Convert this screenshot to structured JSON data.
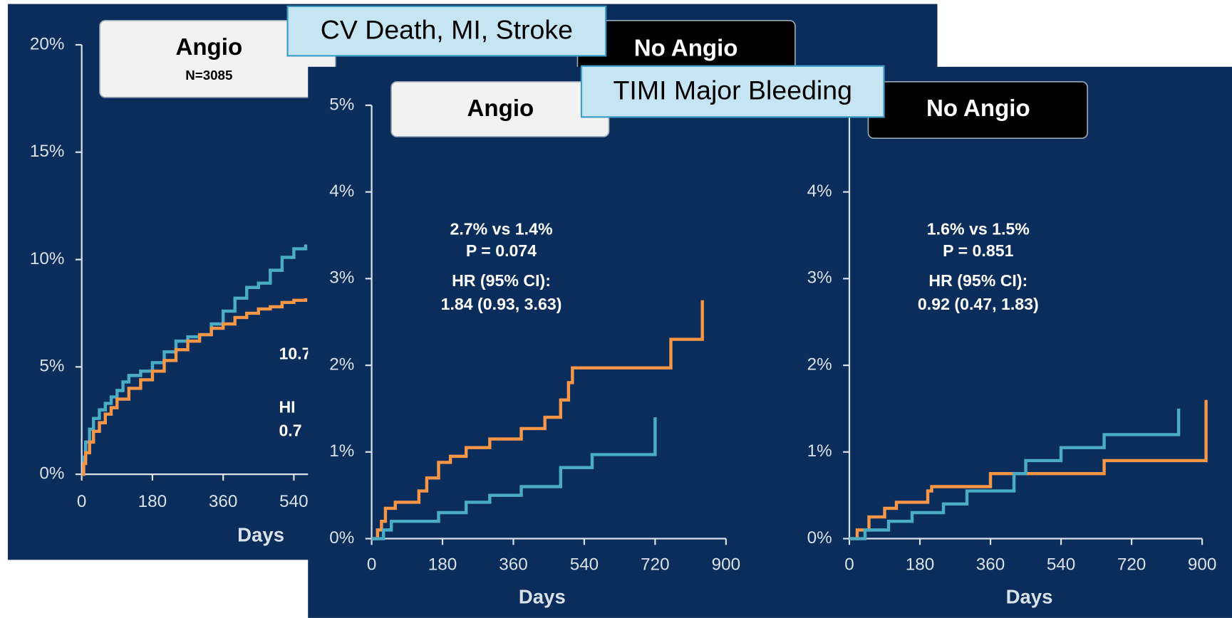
{
  "chart_data": [
    {
      "type": "line",
      "banner": "CV Death, MI, Stroke",
      "title": "Angio",
      "subtitle": "N=3085",
      "annotations": [
        "10.7",
        "HI",
        "0.7"
      ],
      "xlabel": "Days",
      "xlim": [
        0,
        900
      ],
      "xticks": [
        0,
        180,
        360,
        540
      ],
      "ylim": [
        0,
        20
      ],
      "yticks": [
        {
          "value": 0,
          "label": "0%"
        },
        {
          "value": 5,
          "label": "5%"
        },
        {
          "value": 10,
          "label": "10%"
        },
        {
          "value": 15,
          "label": "15%"
        },
        {
          "value": 20,
          "label": "20%"
        }
      ],
      "series": [
        {
          "color": "#4bacc6",
          "x": [
            0,
            5,
            10,
            20,
            30,
            45,
            60,
            75,
            90,
            105,
            120,
            150,
            180,
            210,
            240,
            270,
            300,
            330,
            360,
            390,
            420,
            450,
            480,
            510,
            540,
            570
          ],
          "values": [
            0,
            0.8,
            1.5,
            2.1,
            2.6,
            3.0,
            3.3,
            3.6,
            3.9,
            4.3,
            4.6,
            4.8,
            5.2,
            5.7,
            6.2,
            6.4,
            6.5,
            7.0,
            7.6,
            8.2,
            8.7,
            8.9,
            9.5,
            10.1,
            10.5,
            10.7
          ]
        },
        {
          "color": "#f79646",
          "x": [
            0,
            5,
            10,
            20,
            30,
            45,
            60,
            75,
            90,
            120,
            150,
            180,
            210,
            240,
            270,
            300,
            330,
            360,
            390,
            420,
            450,
            480,
            510,
            540,
            570
          ],
          "values": [
            0,
            0.5,
            1.0,
            1.5,
            2.0,
            2.4,
            2.8,
            3.1,
            3.5,
            4.0,
            4.4,
            4.8,
            5.3,
            5.8,
            6.2,
            6.5,
            6.8,
            7.0,
            7.3,
            7.5,
            7.7,
            7.8,
            8.0,
            8.1,
            8.2
          ]
        }
      ]
    },
    {
      "type": "line",
      "title": "No Angio"
    },
    {
      "type": "line",
      "banner": "TIMI Major Bleeding",
      "title": "Angio",
      "annotations": [
        "2.7% vs 1.4%",
        "P = 0.074",
        "HR (95% CI):",
        "1.84 (0.93, 3.63)"
      ],
      "xlabel": "Days",
      "xlim": [
        0,
        900
      ],
      "xticks": [
        0,
        180,
        360,
        540,
        720,
        900
      ],
      "ylim": [
        0,
        5
      ],
      "yticks": [
        {
          "value": 0,
          "label": "0%"
        },
        {
          "value": 1,
          "label": "1%"
        },
        {
          "value": 2,
          "label": "2%"
        },
        {
          "value": 3,
          "label": "3%"
        },
        {
          "value": 4,
          "label": "4%"
        },
        {
          "value": 5,
          "label": "5%"
        }
      ],
      "series": [
        {
          "color": "#f79646",
          "x": [
            0,
            15,
            25,
            35,
            60,
            120,
            140,
            170,
            200,
            240,
            300,
            380,
            440,
            480,
            500,
            510,
            540,
            760,
            840,
            840
          ],
          "values": [
            0,
            0.1,
            0.2,
            0.35,
            0.42,
            0.55,
            0.7,
            0.88,
            0.95,
            1.05,
            1.15,
            1.27,
            1.4,
            1.6,
            1.8,
            1.97,
            1.97,
            2.3,
            2.3,
            2.75
          ]
        },
        {
          "color": "#4bacc6",
          "x": [
            0,
            30,
            50,
            170,
            240,
            300,
            380,
            480,
            560,
            720,
            720
          ],
          "values": [
            0,
            0.1,
            0.2,
            0.3,
            0.42,
            0.5,
            0.6,
            0.82,
            0.97,
            1.15,
            1.4
          ]
        }
      ]
    },
    {
      "type": "line",
      "title": "No Angio",
      "annotations": [
        "1.6% vs 1.5%",
        "P = 0.851",
        "HR (95% CI):",
        "0.92 (0.47, 1.83)"
      ],
      "xlabel": "Days",
      "xlim": [
        0,
        900
      ],
      "xticks": [
        0,
        180,
        360,
        540,
        720,
        900
      ],
      "ylim": [
        0,
        5
      ],
      "yticks": [
        {
          "value": 0,
          "label": "0%"
        },
        {
          "value": 1,
          "label": "1%"
        },
        {
          "value": 2,
          "label": "2%"
        },
        {
          "value": 3,
          "label": "3%"
        },
        {
          "value": 4,
          "label": "4%"
        }
      ],
      "series": [
        {
          "color": "#f79646",
          "x": [
            0,
            20,
            50,
            90,
            120,
            200,
            210,
            360,
            600,
            650,
            910,
            910
          ],
          "values": [
            0,
            0.1,
            0.25,
            0.35,
            0.42,
            0.55,
            0.6,
            0.75,
            0.75,
            0.9,
            1.05,
            1.6
          ]
        },
        {
          "color": "#4bacc6",
          "x": [
            0,
            40,
            100,
            160,
            240,
            300,
            420,
            450,
            540,
            650,
            840,
            840
          ],
          "values": [
            0,
            0.1,
            0.2,
            0.3,
            0.4,
            0.55,
            0.75,
            0.9,
            1.05,
            1.2,
            1.3,
            1.5
          ]
        }
      ]
    }
  ]
}
